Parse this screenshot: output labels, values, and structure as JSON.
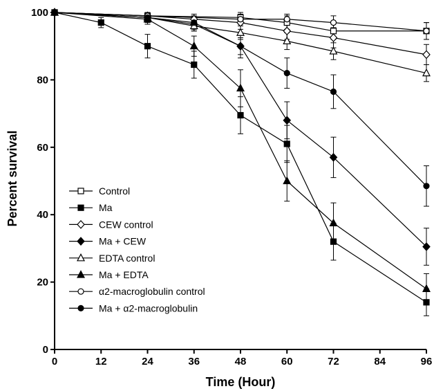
{
  "chart_data": {
    "type": "line",
    "xlabel": "Time (Hour)",
    "ylabel": "Percent survival",
    "xlim": [
      0,
      96
    ],
    "ylim": [
      0,
      100
    ],
    "xticks": [
      0,
      12,
      24,
      36,
      48,
      60,
      72,
      84,
      96
    ],
    "yticks": [
      0,
      20,
      40,
      60,
      80,
      100
    ],
    "grid": false,
    "legend_position": "bottom-left",
    "series": [
      {
        "name": "Control",
        "marker": "square-open",
        "color": "#000000",
        "x": [
          0,
          24,
          48,
          60,
          72,
          96
        ],
        "y": [
          100,
          99,
          98.5,
          97,
          94.5,
          94.5
        ],
        "err": [
          0,
          1,
          1.5,
          2,
          2.5,
          2.5
        ]
      },
      {
        "name": "Ma",
        "marker": "square-filled",
        "color": "#000000",
        "x": [
          0,
          12,
          24,
          36,
          48,
          60,
          72,
          96
        ],
        "y": [
          100,
          97,
          90,
          84.5,
          69.5,
          61,
          32,
          14
        ],
        "err": [
          0,
          1.5,
          3.5,
          4,
          5.5,
          5.5,
          5.5,
          4
        ]
      },
      {
        "name": "CEW control",
        "marker": "diamond-open",
        "color": "#000000",
        "x": [
          0,
          24,
          36,
          48,
          60,
          72,
          96
        ],
        "y": [
          100,
          99,
          98,
          97,
          94.5,
          92.5,
          87.5
        ],
        "err": [
          0,
          1,
          1.5,
          2,
          2.5,
          3,
          3
        ]
      },
      {
        "name": "Ma + CEW",
        "marker": "diamond-filled",
        "color": "#000000",
        "x": [
          0,
          24,
          36,
          48,
          60,
          72,
          96
        ],
        "y": [
          100,
          98.5,
          96.5,
          90,
          68,
          57,
          30.5
        ],
        "err": [
          0,
          1,
          2,
          2.5,
          5.5,
          6,
          5.5
        ]
      },
      {
        "name": "EDTA control",
        "marker": "triangle-open",
        "color": "#000000",
        "x": [
          0,
          24,
          36,
          48,
          60,
          72,
          96
        ],
        "y": [
          100,
          98.5,
          96,
          94,
          91.5,
          88.5,
          82
        ],
        "err": [
          0,
          1,
          1.5,
          2,
          2.5,
          2.5,
          2.5
        ]
      },
      {
        "name": "Ma + EDTA",
        "marker": "triangle-filled",
        "color": "#000000",
        "x": [
          0,
          24,
          36,
          48,
          60,
          72,
          96
        ],
        "y": [
          100,
          98,
          90,
          77.5,
          50,
          37.5,
          18
        ],
        "err": [
          0,
          1.5,
          3,
          5.5,
          6,
          6,
          4.5
        ]
      },
      {
        "name": "α2-macroglobulin control",
        "marker": "circle-open",
        "color": "#000000",
        "x": [
          0,
          24,
          48,
          60,
          72,
          96
        ],
        "y": [
          100,
          99,
          98,
          98,
          97,
          94.5
        ],
        "err": [
          0,
          1,
          1.5,
          1.5,
          2,
          2.5
        ]
      },
      {
        "name": "Ma + α2-macroglobulin",
        "marker": "circle-filled",
        "color": "#000000",
        "x": [
          0,
          24,
          36,
          48,
          60,
          72,
          96
        ],
        "y": [
          100,
          98.5,
          97,
          90,
          82,
          76.5,
          48.5
        ],
        "err": [
          0,
          1.5,
          2,
          3.5,
          4.5,
          5,
          6
        ]
      }
    ]
  }
}
